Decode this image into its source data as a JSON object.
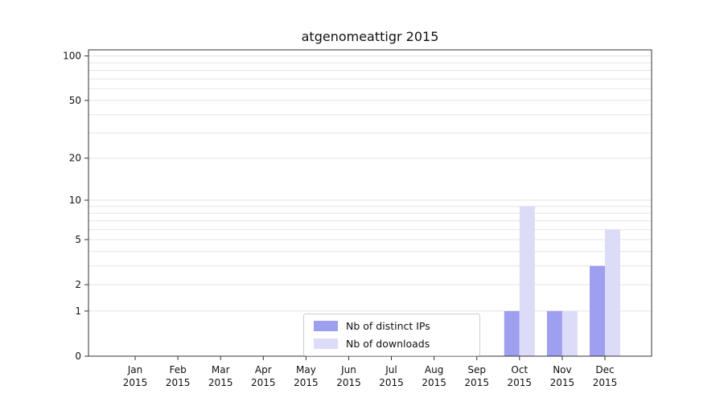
{
  "title": "atgenomeattigr 2015",
  "legend": [
    {
      "label": "Nb of distinct IPs",
      "color": "#9f9ff0"
    },
    {
      "label": "Nb of downloads",
      "color": "#dcdcf9"
    }
  ],
  "chart_data": {
    "type": "bar",
    "title": "atgenomeattigr 2015",
    "categories": [
      "Jan",
      "Feb",
      "Mar",
      "Apr",
      "May",
      "Jun",
      "Jul",
      "Aug",
      "Sep",
      "Oct",
      "Nov",
      "Dec"
    ],
    "year": "2015",
    "series": [
      {
        "name": "Nb of distinct IPs",
        "color": "#9f9ff0",
        "values": [
          0,
          0,
          0,
          0,
          0,
          0,
          0,
          0,
          0,
          1,
          1,
          3
        ]
      },
      {
        "name": "Nb of downloads",
        "color": "#dcdcf9",
        "values": [
          0,
          0,
          0,
          0,
          0,
          0,
          0,
          0,
          0,
          9,
          1,
          6
        ]
      }
    ],
    "y_ticks": [
      0,
      1,
      2,
      5,
      10,
      20,
      50,
      100
    ],
    "y_minor_gridlines": [
      1,
      2,
      3,
      4,
      5,
      6,
      7,
      8,
      9,
      10,
      20,
      30,
      40,
      50,
      60,
      70,
      80,
      90,
      100
    ],
    "y_scale": "log1p",
    "ylim": [
      0,
      110
    ],
    "xlabel": "",
    "ylabel": "",
    "grid": "horizontal-minor",
    "legend_position": "lower center"
  }
}
